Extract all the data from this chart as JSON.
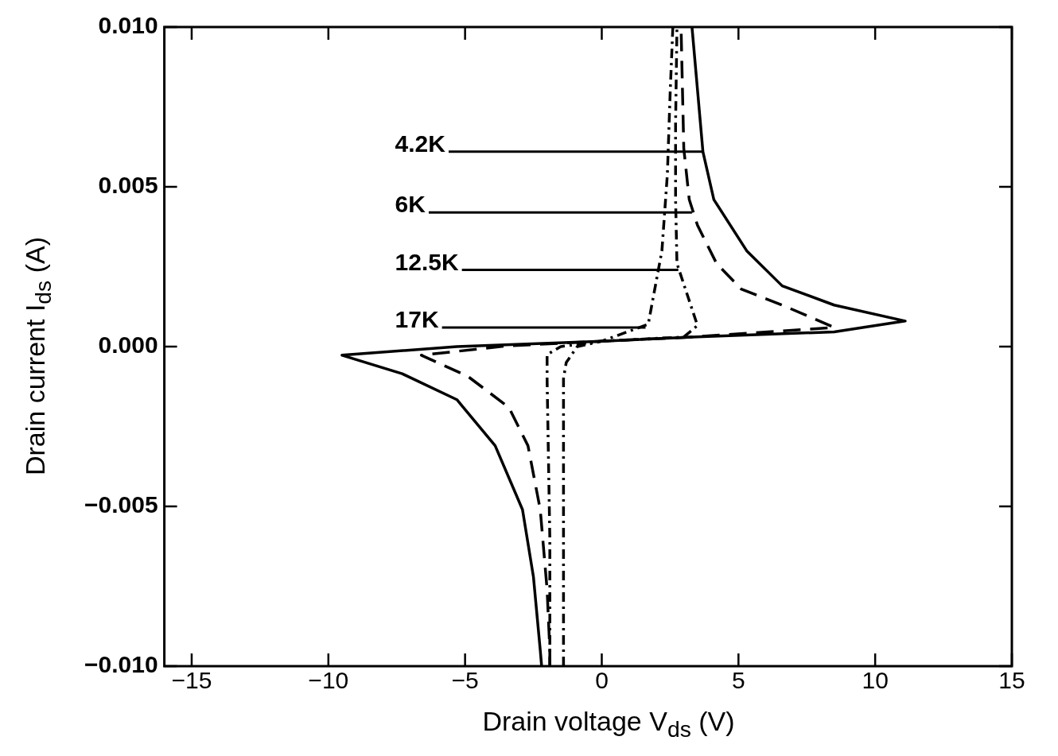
{
  "chart_data": {
    "type": "line",
    "xlabel": "Drain voltage  V$_{ds}$ (V)",
    "ylabel": "Drain current  I$_{ds}$ (A)",
    "xlim": [
      -16,
      15
    ],
    "xticks": [
      {
        "value": -15,
        "label": "−15"
      },
      {
        "value": -10,
        "label": "−10"
      },
      {
        "value": -5,
        "label": "−5"
      },
      0,
      5,
      10,
      15
    ],
    "ylim": [
      -0.01,
      0.01
    ],
    "yticks": [
      {
        "value": -0.01,
        "label": "−0.010"
      },
      {
        "value": -0.005,
        "label": "−0.005"
      },
      {
        "value": 0,
        "label": "0.000"
      },
      {
        "value": 0.005,
        "label": "0.005"
      },
      {
        "value": 0.01,
        "label": "0.010"
      }
    ],
    "grid": false,
    "legend": false,
    "marker": "none",
    "series": [
      {
        "color": "#000000",
        "line_style": "solid",
        "x": [
          -2.2,
          -2.25,
          -2.5,
          -2.9,
          -3.9,
          -5.3,
          -7.3,
          -9.5,
          -5.3,
          0,
          3.3,
          8.5,
          11.1,
          8.5,
          6.6,
          5.3,
          4.1,
          3.7,
          3.3
        ],
        "values": [
          -0.01,
          -0.0095,
          -0.0072,
          -0.0051,
          -0.0031,
          -0.00166,
          -0.00085,
          -0.00027,
          0,
          0.00017,
          0.0003,
          0.00046,
          0.0008,
          0.0013,
          0.0019,
          0.003,
          0.0046,
          0.0061,
          0.01
        ]
      },
      {
        "color": "#000000",
        "line_style": "dashed",
        "x": [
          -1.9,
          -1.9,
          -2.0,
          -2.25,
          -2.7,
          -3.4,
          -4.9,
          -6.6,
          -3.5,
          0,
          3.3,
          8.5,
          6.6,
          5.1,
          4.2,
          3.5,
          3.2,
          3.0,
          2.9
        ],
        "values": [
          -0.01,
          -0.0095,
          -0.0076,
          -0.0051,
          -0.0031,
          -0.0019,
          -0.00093,
          -0.00027,
          2e-05,
          0.00017,
          0.0003,
          0.0006,
          0.0013,
          0.0018,
          0.0026,
          0.0038,
          0.0046,
          0.0062,
          0.01
        ]
      },
      {
        "color": "#000000",
        "line_style": "dotted",
        "x": [
          -1.9,
          -1.9,
          -2.0,
          -2.0,
          -1.5,
          0,
          3.0,
          3.5,
          2.75,
          2.7,
          2.7,
          2.75
        ],
        "values": [
          -0.01,
          -0.006,
          -0.001,
          -0.00025,
          0,
          0.00017,
          0.0003,
          0.00066,
          0.0026,
          0.0046,
          0.007,
          0.01
        ]
      },
      {
        "color": "#000000",
        "line_style": "dotted",
        "x": [
          -1.4,
          -1.4,
          -1.4,
          -1.3,
          -0.9,
          0,
          1.7,
          2.2,
          2.4,
          2.5,
          2.6
        ],
        "values": [
          -0.01,
          -0.006,
          -0.001,
          -0.0005,
          0,
          0.00017,
          0.0007,
          0.003,
          0.0054,
          0.0079,
          0.01
        ]
      }
    ],
    "annotations": [
      {
        "text": "4.2K",
        "x": 3.7,
        "y": 0.0061
      },
      {
        "text": "6K",
        "x": 3.3,
        "y": 0.0042
      },
      {
        "text": "12.5K",
        "x": 2.8,
        "y": 0.0024
      },
      {
        "text": "17K",
        "x": 1.6,
        "y": 0.0006
      }
    ]
  }
}
